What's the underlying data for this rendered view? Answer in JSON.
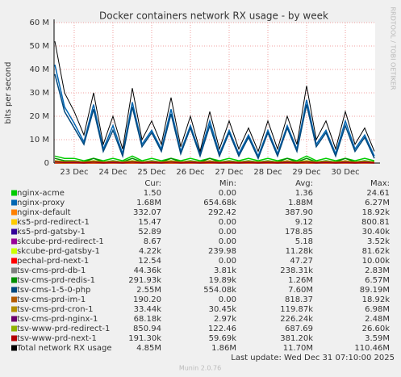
{
  "chart_data": {
    "type": "line",
    "title": "Docker containers network RX usage - by week",
    "y_label": "bits per second",
    "side_text": "RRDTOOL / TOBI OETIKER",
    "x": [
      22.5,
      22.75,
      23,
      23.25,
      23.5,
      23.75,
      24,
      24.25,
      24.5,
      24.75,
      25,
      25.25,
      25.5,
      25.75,
      26,
      26.25,
      26.5,
      26.75,
      27,
      27.25,
      27.5,
      27.75,
      28,
      28.25,
      28.5,
      28.75,
      29,
      29.25,
      29.5,
      29.75,
      30,
      30.25,
      30.5,
      30.75
    ],
    "xlim": [
      22.48,
      30.77
    ],
    "xticks": [
      {
        "value": 23,
        "label": "23 Dec"
      },
      {
        "value": 24,
        "label": "24 Dec"
      },
      {
        "value": 25,
        "label": "25 Dec"
      },
      {
        "value": 26,
        "label": "26 Dec"
      },
      {
        "value": 27,
        "label": "27 Dec"
      },
      {
        "value": 28,
        "label": "28 Dec"
      },
      {
        "value": 29,
        "label": "29 Dec"
      },
      {
        "value": 30,
        "label": "30 Dec"
      }
    ],
    "ylim": [
      0,
      60000000
    ],
    "yticks": [
      0,
      {
        "value": 10000000,
        "label": "10 M"
      },
      {
        "value": 20000000,
        "label": "20 M"
      },
      {
        "value": 30000000,
        "label": "30 M"
      },
      {
        "value": 40000000,
        "label": "40 M"
      },
      {
        "value": 50000000,
        "label": "50 M"
      },
      {
        "value": 60000000,
        "label": "60 M"
      }
    ],
    "grid": true,
    "series": [
      {
        "name": "nginx-acme",
        "color": "#00cc00",
        "values": [
          3000000.0,
          2000000.0,
          2000000.0,
          1000000.0,
          2000000.0,
          1000000.0,
          2000000.0,
          1000000.0,
          3000000.0,
          1000000.0,
          2000000.0,
          1000000.0,
          2000000.0,
          1000000.0,
          2000000.0,
          1000000.0,
          2000000.0,
          1000000.0,
          2000000.0,
          1000000.0,
          2000000.0,
          1000000.0,
          2000000.0,
          1000000.0,
          2000000.0,
          1000000.0,
          3000000.0,
          1000000.0,
          2000000.0,
          1000000.0,
          2000000.0,
          1000000.0,
          2000000.0,
          1000000.0
        ]
      },
      {
        "name": "nginx-proxy",
        "color": "#0066b3",
        "values": [
          42000000.0,
          24000000.0,
          17000000.0,
          9000000.0,
          25000000.0,
          6000000.0,
          16000000.0,
          4000000.0,
          26000000.0,
          8000000.0,
          14000000.0,
          6000000.0,
          23000000.0,
          5000000.0,
          16000000.0,
          4000000.0,
          18000000.0,
          4000000.0,
          14000000.0,
          4000000.0,
          12000000.0,
          3000000.0,
          14000000.0,
          4000000.0,
          16000000.0,
          6000000.0,
          27000000.0,
          8000000.0,
          14000000.0,
          4000000.0,
          18000000.0,
          6000000.0,
          12000000.0,
          3000000.0
        ]
      },
      {
        "name": "nginx-default",
        "color": "#ff8000",
        "values": [
          500000.0,
          200000.0,
          500000.0,
          200000.0,
          500000.0,
          200000.0,
          500000.0,
          200000.0,
          500000.0,
          200000.0,
          500000.0,
          200000.0,
          500000.0,
          200000.0,
          500000.0,
          200000.0,
          500000.0,
          200000.0,
          500000.0,
          200000.0,
          500000.0,
          200000.0,
          500000.0,
          200000.0,
          500000.0,
          200000.0,
          500000.0,
          200000.0,
          500000.0,
          200000.0,
          500000.0,
          200000.0,
          500000.0,
          200000.0
        ]
      },
      {
        "name": "ks5-prd-redirect-1",
        "color": "#ffcc00",
        "values": [
          100000.0,
          10000.0,
          100000.0,
          10000.0,
          100000.0,
          10000.0,
          100000.0,
          10000.0,
          100000.0,
          10000.0,
          100000.0,
          10000.0,
          100000.0,
          10000.0,
          100000.0,
          10000.0,
          100000.0,
          10000.0,
          100000.0,
          10000.0,
          100000.0,
          10000.0,
          100000.0,
          10000.0,
          100000.0,
          10000.0,
          100000.0,
          10000.0,
          100000.0,
          10000.0,
          100000.0,
          10000.0,
          100000.0,
          10000.0
        ]
      },
      {
        "name": "ks5-prd-gatsby-1",
        "color": "#330099",
        "values": [
          200000.0,
          100000.0,
          200000.0,
          100000.0,
          200000.0,
          100000.0,
          200000.0,
          100000.0,
          200000.0,
          100000.0,
          200000.0,
          100000.0,
          200000.0,
          100000.0,
          200000.0,
          100000.0,
          200000.0,
          100000.0,
          200000.0,
          100000.0,
          200000.0,
          100000.0,
          200000.0,
          100000.0,
          200000.0,
          100000.0,
          200000.0,
          100000.0,
          200000.0,
          100000.0,
          200000.0,
          100000.0,
          200000.0,
          100000.0
        ]
      },
      {
        "name": "skcube-prd-redirect-1",
        "color": "#990099",
        "values": [
          10000.0,
          0,
          10000.0,
          0,
          10000.0,
          0,
          10000.0,
          0,
          10000.0,
          0,
          10000.0,
          0,
          10000.0,
          0,
          10000.0,
          0,
          10000.0,
          0,
          10000.0,
          0,
          10000.0,
          0,
          10000.0,
          0,
          10000.0,
          0,
          10000.0,
          0,
          10000.0,
          0,
          10000.0,
          0,
          10000.0,
          0
        ]
      },
      {
        "name": "skcube-prd-gatsby-1",
        "color": "#ccff00",
        "values": [
          30000.0,
          10000.0,
          30000.0,
          10000.0,
          30000.0,
          10000.0,
          30000.0,
          10000.0,
          30000.0,
          10000.0,
          30000.0,
          10000.0,
          30000.0,
          10000.0,
          30000.0,
          10000.0,
          30000.0,
          10000.0,
          30000.0,
          10000.0,
          30000.0,
          10000.0,
          30000.0,
          10000.0,
          30000.0,
          10000.0,
          30000.0,
          10000.0,
          30000.0,
          10000.0,
          30000.0,
          10000.0,
          30000.0,
          10000.0
        ]
      },
      {
        "name": "pechal-prd-next-1",
        "color": "#ff0000",
        "values": [
          50000.0,
          10000.0,
          50000.0,
          10000.0,
          50000.0,
          10000.0,
          50000.0,
          10000.0,
          50000.0,
          10000.0,
          50000.0,
          10000.0,
          50000.0,
          10000.0,
          50000.0,
          10000.0,
          50000.0,
          10000.0,
          50000.0,
          10000.0,
          50000.0,
          10000.0,
          50000.0,
          10000.0,
          50000.0,
          10000.0,
          50000.0,
          10000.0,
          50000.0,
          10000.0,
          50000.0,
          10000.0,
          50000.0,
          10000.0
        ]
      },
      {
        "name": "tsv-cms-prd-db-1",
        "color": "#808080",
        "values": [
          500000.0,
          200000.0,
          300000.0,
          100000.0,
          400000.0,
          100000.0,
          300000.0,
          100000.0,
          500000.0,
          100000.0,
          300000.0,
          100000.0,
          400000.0,
          100000.0,
          300000.0,
          100000.0,
          300000.0,
          100000.0,
          300000.0,
          100000.0,
          300000.0,
          100000.0,
          300000.0,
          100000.0,
          300000.0,
          100000.0,
          500000.0,
          100000.0,
          300000.0,
          100000.0,
          300000.0,
          100000.0,
          300000.0,
          100000.0
        ]
      },
      {
        "name": "tsv-cms-prd-redis-1",
        "color": "#008f00",
        "values": [
          2000000.0,
          1000000.0,
          1000000.0,
          500000.0,
          2000000.0,
          500000.0,
          1000000.0,
          500000.0,
          2000000.0,
          500000.0,
          1000000.0,
          500000.0,
          2000000.0,
          500000.0,
          1000000.0,
          500000.0,
          2000000.0,
          500000.0,
          1000000.0,
          500000.0,
          1000000.0,
          500000.0,
          1000000.0,
          500000.0,
          2000000.0,
          500000.0,
          2000000.0,
          500000.0,
          1000000.0,
          500000.0,
          2000000.0,
          500000.0,
          1000000.0,
          500000.0
        ]
      },
      {
        "name": "tsv-cms-1-5-0-php",
        "color": "#00487d",
        "values": [
          38000000.0,
          22000000.0,
          15000000.0,
          8000000.0,
          23000000.0,
          5000000.0,
          14000000.0,
          3000000.0,
          24000000.0,
          7000000.0,
          13000000.0,
          5000000.0,
          21000000.0,
          4000000.0,
          15000000.0,
          3000000.0,
          16000000.0,
          3000000.0,
          13000000.0,
          3000000.0,
          11000000.0,
          2000000.0,
          13000000.0,
          3000000.0,
          15000000.0,
          5000000.0,
          25000000.0,
          7000000.0,
          13000000.0,
          3000000.0,
          16000000.0,
          5000000.0,
          11000000.0,
          2000000.0
        ]
      },
      {
        "name": "tsv-cms-prd-im-1",
        "color": "#b35a00",
        "values": [
          1000000.0,
          500000.0,
          800000.0,
          300000.0,
          1000000.0,
          300000.0,
          800000.0,
          300000.0,
          1000000.0,
          300000.0,
          800000.0,
          300000.0,
          1000000.0,
          300000.0,
          800000.0,
          300000.0,
          1000000.0,
          300000.0,
          800000.0,
          300000.0,
          800000.0,
          300000.0,
          800000.0,
          300000.0,
          1000000.0,
          300000.0,
          1000000.0,
          300000.0,
          800000.0,
          300000.0,
          1000000.0,
          300000.0,
          800000.0,
          300000.0
        ]
      },
      {
        "name": "tsv-cms-prd-cron-1",
        "color": "#b38f00",
        "values": [
          200000.0,
          100000.0,
          200000.0,
          100000.0,
          200000.0,
          100000.0,
          200000.0,
          100000.0,
          200000.0,
          100000.0,
          200000.0,
          100000.0,
          200000.0,
          100000.0,
          200000.0,
          100000.0,
          200000.0,
          100000.0,
          200000.0,
          100000.0,
          200000.0,
          100000.0,
          200000.0,
          100000.0,
          200000.0,
          100000.0,
          200000.0,
          100000.0,
          200000.0,
          100000.0,
          200000.0,
          100000.0,
          200000.0,
          100000.0
        ]
      },
      {
        "name": "tsv-cms-prd-nginx-1",
        "color": "#6b006b",
        "values": [
          500000.0,
          200000.0,
          300000.0,
          100000.0,
          400000.0,
          100000.0,
          300000.0,
          100000.0,
          400000.0,
          100000.0,
          300000.0,
          100000.0,
          400000.0,
          100000.0,
          300000.0,
          100000.0,
          300000.0,
          100000.0,
          300000.0,
          100000.0,
          300000.0,
          100000.0,
          300000.0,
          100000.0,
          300000.0,
          100000.0,
          400000.0,
          100000.0,
          300000.0,
          100000.0,
          300000.0,
          100000.0,
          300000.0,
          100000.0
        ]
      },
      {
        "name": "tsv-www-prd-redirect-1",
        "color": "#8fb300",
        "values": [
          1000000.0,
          600000.0,
          800000.0,
          500000.0,
          1000000.0,
          500000.0,
          800000.0,
          500000.0,
          1000000.0,
          500000.0,
          800000.0,
          500000.0,
          1000000.0,
          500000.0,
          800000.0,
          500000.0,
          800000.0,
          500000.0,
          800000.0,
          500000.0,
          800000.0,
          500000.0,
          800000.0,
          500000.0,
          800000.0,
          500000.0,
          1000000.0,
          500000.0,
          800000.0,
          500000.0,
          800000.0,
          500000.0,
          800000.0,
          500000.0
        ]
      },
      {
        "name": "tsv-www-prd-next-1",
        "color": "#b30000",
        "values": [
          600000.0,
          300000.0,
          400000.0,
          200000.0,
          500000.0,
          200000.0,
          400000.0,
          200000.0,
          500000.0,
          200000.0,
          400000.0,
          200000.0,
          500000.0,
          200000.0,
          400000.0,
          200000.0,
          400000.0,
          200000.0,
          400000.0,
          200000.0,
          400000.0,
          200000.0,
          400000.0,
          200000.0,
          400000.0,
          200000.0,
          500000.0,
          200000.0,
          400000.0,
          200000.0,
          400000.0,
          200000.0,
          400000.0,
          200000.0
        ]
      },
      {
        "name": "Total network RX usage",
        "color": "#000000",
        "values": [
          52000000.0,
          30000000.0,
          22000000.0,
          12000000.0,
          30000000.0,
          8000000.0,
          20000000.0,
          6000000.0,
          32000000.0,
          10000000.0,
          18000000.0,
          8000000.0,
          28000000.0,
          7000000.0,
          20000000.0,
          5000000.0,
          22000000.0,
          6000000.0,
          18000000.0,
          6000000.0,
          15000000.0,
          5000000.0,
          18000000.0,
          6000000.0,
          20000000.0,
          8000000.0,
          33000000.0,
          10000000.0,
          18000000.0,
          6000000.0,
          22000000.0,
          8000000.0,
          15000000.0,
          5000000.0
        ]
      }
    ],
    "legend_table": {
      "headers": [
        "Cur:",
        "Min:",
        "Avg:",
        "Max:"
      ],
      "rows": [
        [
          "1.50",
          "0.00",
          "1.36",
          "24.61"
        ],
        [
          "1.68M",
          "654.68k",
          "1.88M",
          "6.27M"
        ],
        [
          "332.07",
          "292.42",
          "387.90",
          "18.92k"
        ],
        [
          "15.47",
          "0.00",
          "9.12",
          "800.81"
        ],
        [
          "52.89",
          "0.00",
          "178.85",
          "30.40k"
        ],
        [
          "8.67",
          "0.00",
          "5.18",
          "3.52k"
        ],
        [
          "4.22k",
          "239.98",
          "11.28k",
          "81.62k"
        ],
        [
          "12.54",
          "0.00",
          "47.27",
          "10.00k"
        ],
        [
          "44.36k",
          "3.81k",
          "238.31k",
          "2.83M"
        ],
        [
          "291.93k",
          "19.89k",
          "1.26M",
          "6.57M"
        ],
        [
          "2.55M",
          "554.08k",
          "7.60M",
          "89.19M"
        ],
        [
          "190.20",
          "0.00",
          "818.37",
          "18.92k"
        ],
        [
          "33.44k",
          "30.45k",
          "119.87k",
          "6.98M"
        ],
        [
          "68.18k",
          "2.97k",
          "226.24k",
          "2.48M"
        ],
        [
          "850.94",
          "122.46",
          "687.69",
          "26.60k"
        ],
        [
          "191.30k",
          "59.69k",
          "381.20k",
          "3.59M"
        ],
        [
          "4.85M",
          "1.86M",
          "11.70M",
          "110.46M"
        ]
      ]
    },
    "last_update": "Last update: Wed Dec 31 07:10:00 2025",
    "footer": "Munin 2.0.76"
  }
}
